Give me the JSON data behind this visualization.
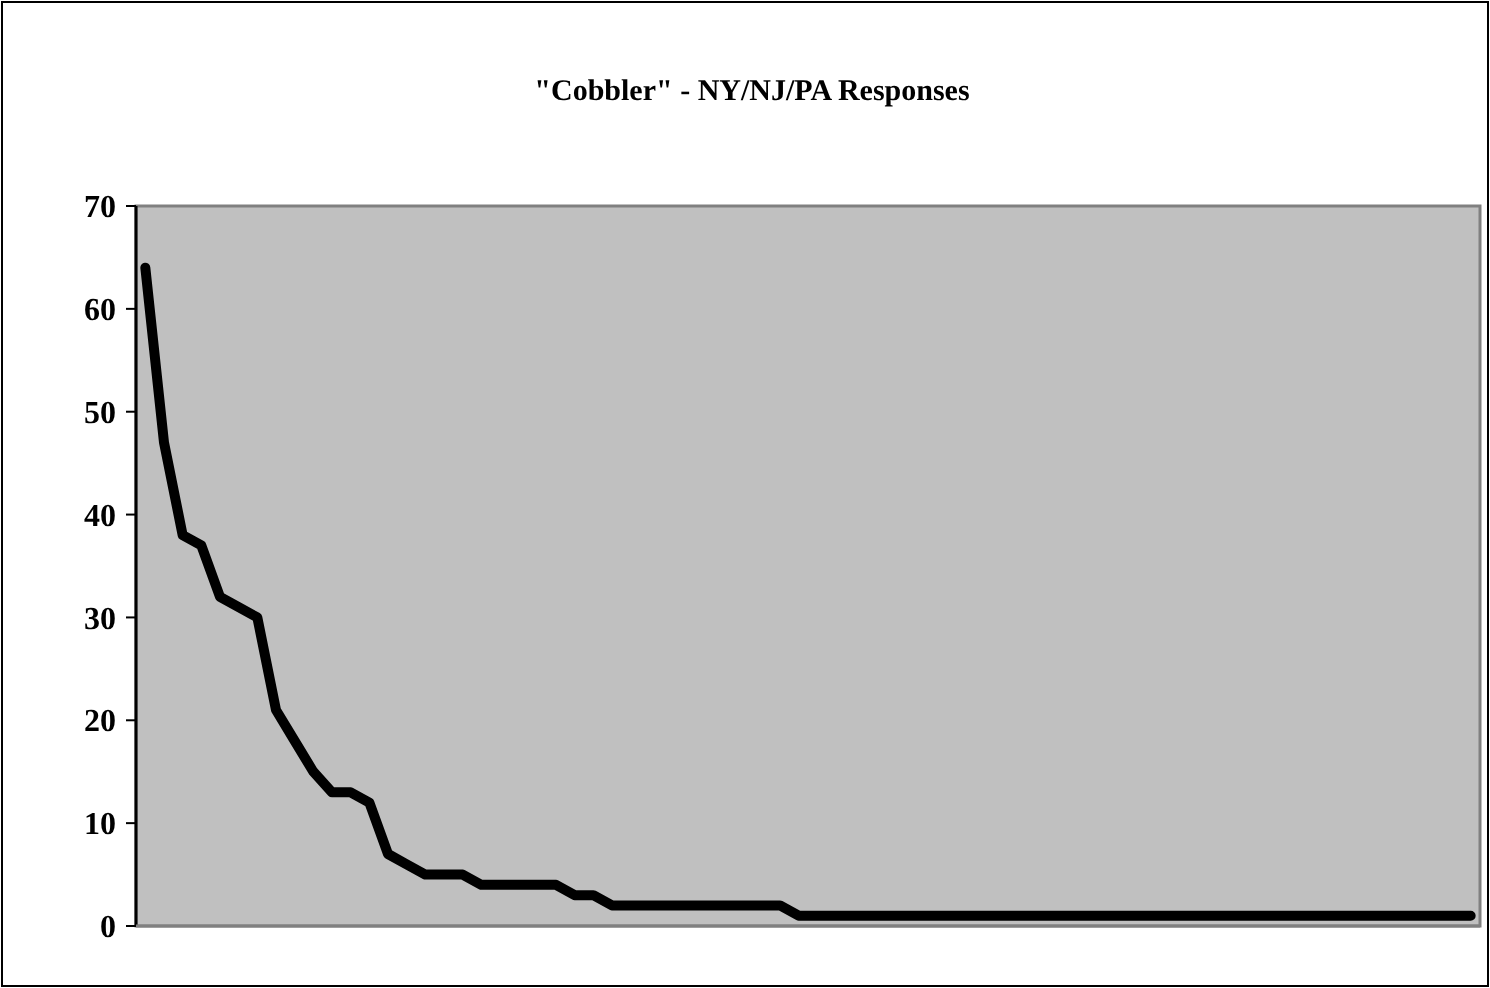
{
  "chart_data": {
    "type": "line",
    "title": "\"Cobbler\" - NY/NJ/PA Responses",
    "categories": [
      null,
      null,
      null,
      null,
      null,
      null,
      null,
      null,
      null,
      null,
      null,
      null,
      null,
      null,
      null,
      null,
      null,
      null,
      null,
      null,
      null,
      null,
      null,
      null,
      null,
      null,
      null,
      null,
      null,
      null,
      null,
      null,
      null,
      null,
      null,
      null,
      null,
      null,
      null,
      null,
      null,
      null,
      null,
      null,
      null,
      null,
      null,
      null,
      null,
      null,
      null,
      null,
      null,
      null,
      null,
      null,
      null,
      null,
      null,
      null,
      null,
      null,
      null,
      null,
      null,
      null,
      null,
      null,
      null,
      null,
      null,
      null
    ],
    "series": [
      {
        "color": "#000000",
        "values": [
          64,
          47,
          38,
          37,
          32,
          31,
          30,
          21,
          18,
          15,
          13,
          13,
          12,
          7,
          6,
          5,
          5,
          5,
          4,
          4,
          4,
          4,
          4,
          3,
          3,
          2,
          2,
          2,
          2,
          2,
          2,
          2,
          2,
          2,
          2,
          1,
          1,
          1,
          1,
          1,
          1,
          1,
          1,
          1,
          1,
          1,
          1,
          1,
          1,
          1,
          1,
          1,
          1,
          1,
          1,
          1,
          1,
          1,
          1,
          1,
          1,
          1,
          1,
          1,
          1,
          1,
          1,
          1,
          1,
          1,
          1,
          1
        ]
      }
    ],
    "ylim": [
      0,
      70
    ],
    "yticks": [
      0,
      10,
      20,
      30,
      40,
      50,
      60,
      70
    ],
    "grid": false,
    "marker": "none",
    "line_style": "solid"
  }
}
